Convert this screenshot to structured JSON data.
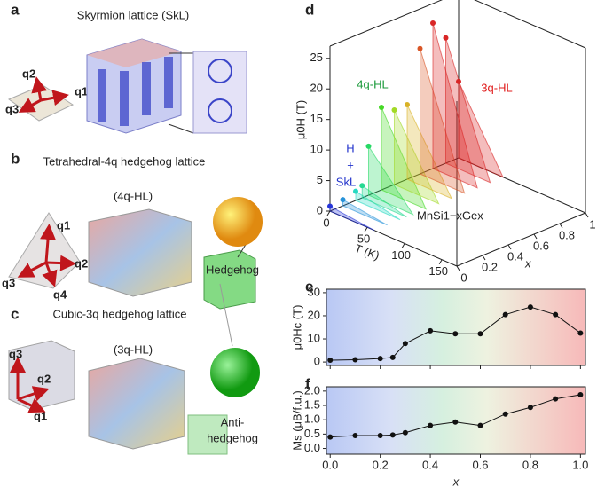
{
  "panels": {
    "a": {
      "label": "a",
      "title": "Skyrmion lattice (SkL)",
      "q": [
        "q1",
        "q2",
        "q3"
      ]
    },
    "b": {
      "label": "b",
      "title": "Tetrahedral-4q hedgehog lattice",
      "phase": "(4q-HL)",
      "q": [
        "q1",
        "q2",
        "q3",
        "q4"
      ],
      "sphere": "Hedgehog"
    },
    "c": {
      "label": "c",
      "title": "Cubic-3q hedgehog lattice",
      "phase": "(3q-HL)",
      "q": [
        "q1",
        "q2",
        "q3"
      ],
      "sphere": [
        "Anti-",
        "hedgehog"
      ]
    }
  },
  "chart_data": [
    {
      "type": "phase3d",
      "label": "d",
      "ylabel": "μ0H (T)",
      "tlabel": "T (K)",
      "xlabel": "x",
      "compound": "MnSi1−xGex",
      "regions": [
        "4q-HL",
        "3q-HL",
        "H",
        "+",
        "SkL"
      ],
      "ylim": [
        0,
        27
      ],
      "yticks": [
        0,
        5,
        10,
        15,
        20,
        25
      ],
      "tlim": [
        0,
        170
      ],
      "tticks": [
        0,
        50,
        100,
        150
      ],
      "xlim": [
        0,
        1
      ],
      "xticks": [
        0,
        0.2,
        0.4,
        0.6,
        0.8,
        1
      ]
    },
    {
      "type": "line",
      "label": "e",
      "ylabel": "μ0Hc (T)",
      "color": "#111",
      "x": [
        0,
        0.1,
        0.2,
        0.25,
        0.3,
        0.4,
        0.5,
        0.6,
        0.7,
        0.8,
        0.9,
        1.0
      ],
      "values": [
        0.8,
        1,
        1.5,
        2,
        8,
        13.5,
        12.2,
        12.2,
        20.5,
        23.8,
        20.5,
        12.5
      ],
      "xlim": [
        -0.015,
        1.02
      ],
      "xticks": [
        0,
        0.2,
        0.4,
        0.6,
        0.8,
        1
      ],
      "show_xtick_labels": false,
      "ylim": [
        -1.5,
        31.5
      ],
      "yticks": [
        0,
        10,
        20,
        30
      ]
    },
    {
      "type": "line",
      "label": "f",
      "ylabel": "Ms (μB/f.u.)",
      "xlabel": "x",
      "color": "#111",
      "x": [
        0,
        0.1,
        0.2,
        0.25,
        0.3,
        0.4,
        0.5,
        0.6,
        0.7,
        0.8,
        0.9,
        1.0
      ],
      "values": [
        0.4,
        0.45,
        0.45,
        0.47,
        0.55,
        0.8,
        0.92,
        0.8,
        1.2,
        1.43,
        1.73,
        1.87
      ],
      "xlim": [
        -0.015,
        1.02
      ],
      "xticks": [
        {
          "value": 0,
          "label": "0.0"
        },
        0.2,
        0.4,
        0.6,
        0.8,
        {
          "value": 1,
          "label": "1.0"
        }
      ],
      "ylim": [
        -0.2,
        2.15
      ],
      "yticks": [
        {
          "value": 0,
          "label": "0.0"
        },
        0.5,
        {
          "value": 1,
          "label": "1.0"
        },
        1.5,
        {
          "value": 2,
          "label": "2.0"
        }
      ]
    }
  ]
}
